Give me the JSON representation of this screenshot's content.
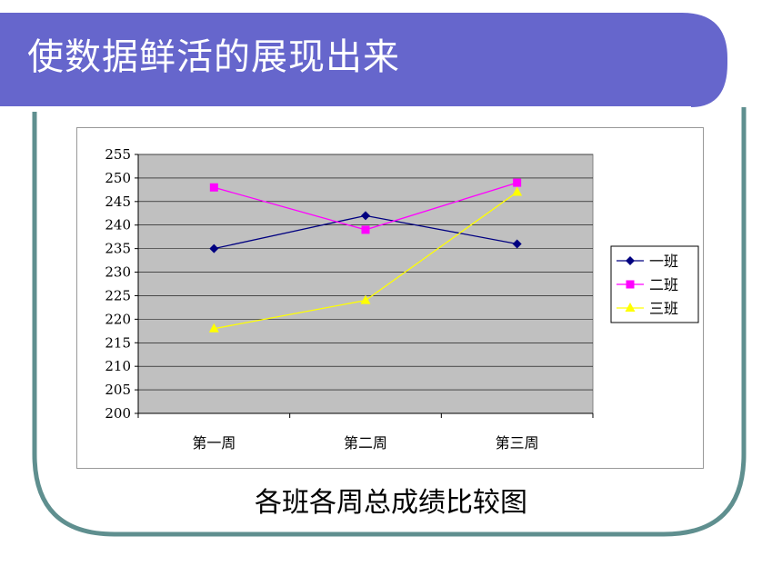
{
  "slide": {
    "title": "使数据鲜活的展现出来",
    "caption": "各班各周总成绩比较图"
  },
  "colors": {
    "title_bar": "#6666CC",
    "frame": "#5F8F8F",
    "plot_bg": "#C0C0C0"
  },
  "chart_data": {
    "type": "line",
    "categories": [
      "第一周",
      "第二周",
      "第三周"
    ],
    "ylim": [
      200,
      255
    ],
    "yticks": [
      200,
      205,
      210,
      215,
      220,
      225,
      230,
      235,
      240,
      245,
      250,
      255
    ],
    "grid": true,
    "legend": "right",
    "series": [
      {
        "name": "一班",
        "values": [
          235,
          242,
          236
        ],
        "color": "#000080",
        "marker": "diamond"
      },
      {
        "name": "二班",
        "values": [
          248,
          239,
          249
        ],
        "color": "#FF00FF",
        "marker": "square"
      },
      {
        "name": "三班",
        "values": [
          218,
          224,
          247
        ],
        "color": "#FFFF00",
        "marker": "triangle"
      }
    ]
  }
}
